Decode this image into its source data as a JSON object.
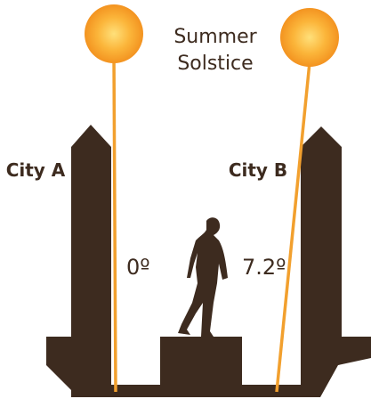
{
  "title_lines": [
    "Summer",
    "Solstice"
  ],
  "cities": [
    {
      "label": "City A",
      "angle": "0º"
    },
    {
      "label": "City B",
      "angle": "7.2º"
    }
  ]
}
